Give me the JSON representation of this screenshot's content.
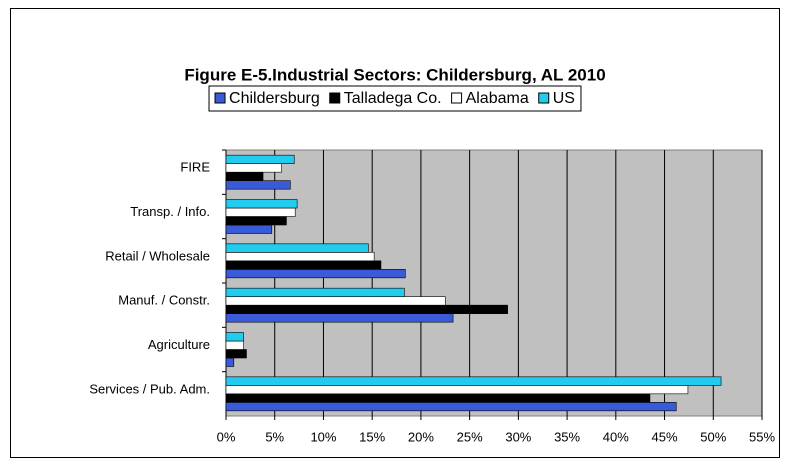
{
  "chart_data": {
    "type": "bar",
    "orientation": "horizontal",
    "title": "Figure E-5.Industrial Sectors: Childersburg, AL 2010",
    "categories": [
      "FIRE",
      "Transp. / Info.",
      "Retail / Wholesale",
      "Manuf. / Constr.",
      "Agriculture",
      "Services / Pub. Adm."
    ],
    "series": [
      {
        "name": "Childersburg",
        "color": "#3a5bd9",
        "values": [
          6.6,
          4.7,
          18.4,
          23.3,
          0.8,
          46.2
        ]
      },
      {
        "name": "Talladega Co.",
        "color": "#000000",
        "values": [
          3.8,
          6.2,
          15.9,
          28.9,
          2.1,
          43.5
        ]
      },
      {
        "name": "Alabama",
        "color": "#ffffff",
        "values": [
          5.7,
          7.1,
          15.2,
          22.5,
          1.8,
          47.4
        ]
      },
      {
        "name": "US",
        "color": "#22ccee",
        "values": [
          7.0,
          7.3,
          14.6,
          18.3,
          1.8,
          50.8
        ]
      }
    ],
    "xlim": [
      0,
      55
    ],
    "xticks": [
      {
        "value": 0,
        "label": "0%"
      },
      {
        "value": 5,
        "label": "5%"
      },
      {
        "value": 10,
        "label": "10%"
      },
      {
        "value": 15,
        "label": "15%"
      },
      {
        "value": 20,
        "label": "20%"
      },
      {
        "value": 25,
        "label": "25%"
      },
      {
        "value": 30,
        "label": "30%"
      },
      {
        "value": 35,
        "label": "35%"
      },
      {
        "value": 40,
        "label": "40%"
      },
      {
        "value": 45,
        "label": "45%"
      },
      {
        "value": 50,
        "label": "50%"
      },
      {
        "value": 55,
        "label": "55%"
      }
    ],
    "grid": true,
    "legend": "top"
  }
}
